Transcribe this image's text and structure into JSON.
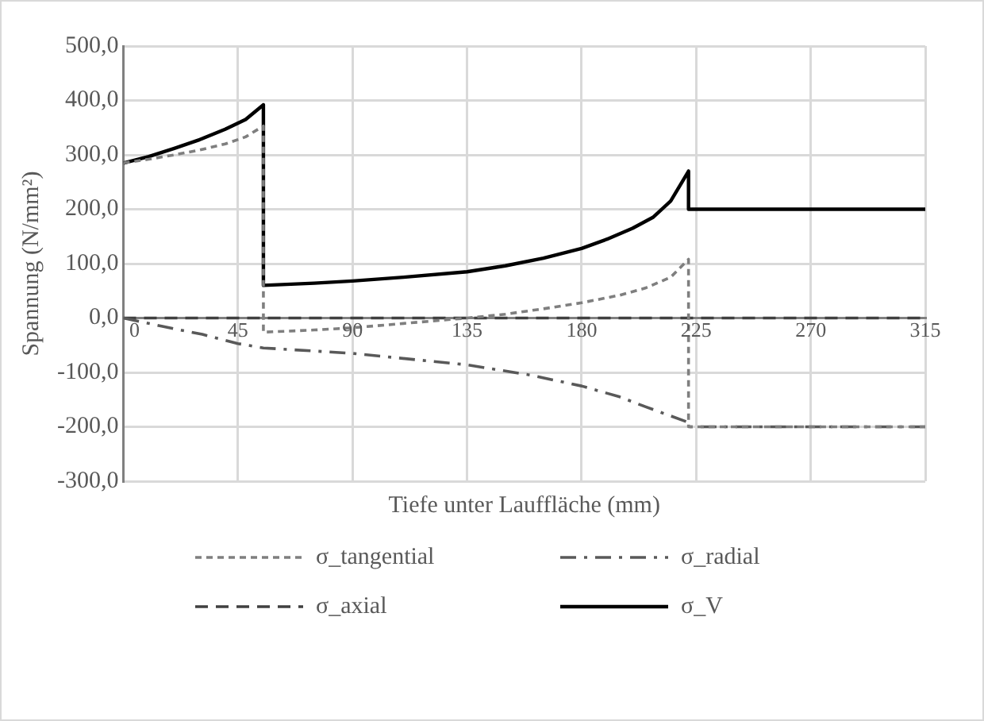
{
  "chart_data": {
    "type": "line",
    "xlabel": "Tiefe unter Lauffläche (mm)",
    "ylabel": "Spannung (N/mm²)",
    "xlim": [
      0,
      315
    ],
    "xticks": [
      0,
      45,
      90,
      135,
      180,
      225,
      270,
      315
    ],
    "ylim": [
      -300,
      500
    ],
    "yticks": [
      {
        "value": -300,
        "label": "-300,0"
      },
      {
        "value": -200,
        "label": "-200,0"
      },
      {
        "value": -100,
        "label": "-100,0"
      },
      {
        "value": 0,
        "label": "0,0"
      },
      {
        "value": 100,
        "label": "100,0"
      },
      {
        "value": 200,
        "label": "200,0"
      },
      {
        "value": 300,
        "label": "300,0"
      },
      {
        "value": 400,
        "label": "400,0"
      },
      {
        "value": 500,
        "label": "500,0"
      }
    ],
    "grid": true,
    "legend": "bottom",
    "marker": "none",
    "series": [
      {
        "name": "σ_tangential",
        "color": "#7f7f7f",
        "line_style": "dotted",
        "x": [
          0,
          10,
          20,
          30,
          40,
          48,
          55,
          55,
          75,
          90,
          110,
          135,
          150,
          165,
          180,
          195,
          205,
          215,
          222,
          222,
          315
        ],
        "values": [
          285,
          292,
          300,
          309,
          320,
          333,
          353,
          -26,
          -22,
          -18,
          -10,
          0,
          7,
          17,
          28,
          42,
          55,
          75,
          108,
          -200,
          -200
        ]
      },
      {
        "name": "σ_radial",
        "color": "#595959",
        "line_style": "dashdot",
        "x": [
          0,
          15,
          31,
          45,
          55,
          90,
          135,
          160,
          180,
          195,
          205,
          215,
          222,
          222,
          315
        ],
        "values": [
          0,
          -15,
          -30,
          -47,
          -55,
          -65,
          -86,
          -105,
          -125,
          -145,
          -163,
          -180,
          -192,
          -200,
          -200
        ]
      },
      {
        "name": "σ_axial",
        "color": "#404040",
        "line_style": "dashed",
        "x": [
          0,
          315
        ],
        "values": [
          0,
          0
        ]
      },
      {
        "name": "σ_V",
        "color": "#000000",
        "line_style": "solid",
        "x": [
          0,
          10,
          20,
          30,
          40,
          48,
          55,
          55,
          75,
          90,
          110,
          135,
          150,
          165,
          180,
          190,
          200,
          208,
          215,
          222,
          222,
          315
        ],
        "values": [
          285,
          297,
          312,
          328,
          347,
          365,
          392,
          60,
          64,
          68,
          75,
          85,
          96,
          110,
          128,
          145,
          165,
          185,
          215,
          270,
          200,
          200
        ]
      }
    ]
  }
}
